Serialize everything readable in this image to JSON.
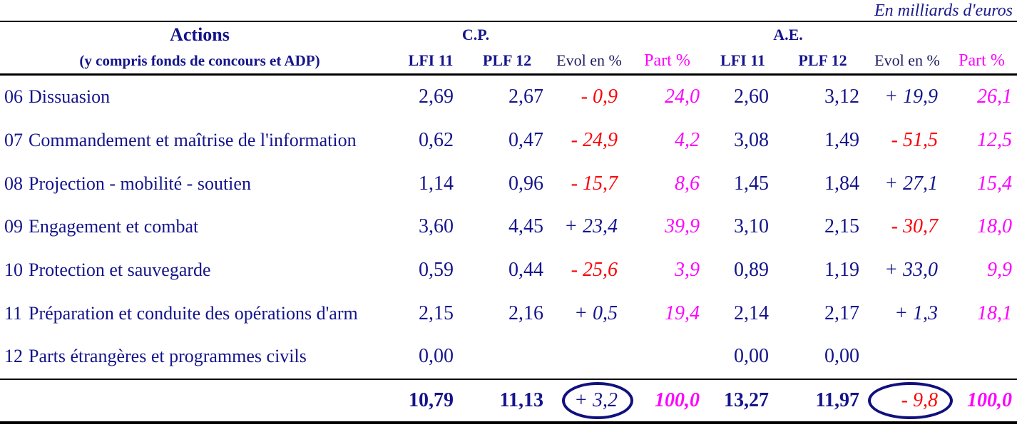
{
  "caption": "En milliards d'euros",
  "header": {
    "actions_title": "Actions",
    "actions_subtitle": "(y compris fonds de concours et ADP)",
    "group_cp": "C.P.",
    "group_ae": "A.E.",
    "col_lfi": "LFI 11",
    "col_plf": "PLF 12",
    "col_evol": "Evol en %",
    "col_part": "Part %"
  },
  "colors": {
    "navy_text": "#14148c",
    "negative_red": "#fb0205",
    "part_magenta": "#ff00ff",
    "rule_black": "#000000",
    "circle_navy": "#10107e"
  },
  "rows": [
    {
      "num": "06",
      "label": "Dissuasion",
      "cp_lfi": "2,69",
      "cp_plf": "2,67",
      "cp_evol": "- 0,9",
      "cp_part": "24,0",
      "ae_lfi": "2,60",
      "ae_plf": "3,12",
      "ae_evol": "+ 19,9",
      "ae_part": "26,1"
    },
    {
      "num": "07",
      "label": "Commandement et maîtrise de l'information",
      "cp_lfi": "0,62",
      "cp_plf": "0,47",
      "cp_evol": "- 24,9",
      "cp_part": "4,2",
      "ae_lfi": "3,08",
      "ae_plf": "1,49",
      "ae_evol": "- 51,5",
      "ae_part": "12,5"
    },
    {
      "num": "08",
      "label": "Projection - mobilité - soutien",
      "cp_lfi": "1,14",
      "cp_plf": "0,96",
      "cp_evol": "- 15,7",
      "cp_part": "8,6",
      "ae_lfi": "1,45",
      "ae_plf": "1,84",
      "ae_evol": "+ 27,1",
      "ae_part": "15,4"
    },
    {
      "num": "09",
      "label": "Engagement et combat",
      "cp_lfi": "3,60",
      "cp_plf": "4,45",
      "cp_evol": "+ 23,4",
      "cp_part": "39,9",
      "ae_lfi": "3,10",
      "ae_plf": "2,15",
      "ae_evol": "- 30,7",
      "ae_part": "18,0"
    },
    {
      "num": "10",
      "label": "Protection et sauvegarde",
      "cp_lfi": "0,59",
      "cp_plf": "0,44",
      "cp_evol": "- 25,6",
      "cp_part": "3,9",
      "ae_lfi": "0,89",
      "ae_plf": "1,19",
      "ae_evol": "+ 33,0",
      "ae_part": "9,9"
    },
    {
      "num": "11",
      "label": "Préparation et conduite des opérations d'arm",
      "cp_lfi": "2,15",
      "cp_plf": "2,16",
      "cp_evol": "+ 0,5",
      "cp_part": "19,4",
      "ae_lfi": "2,14",
      "ae_plf": "2,17",
      "ae_evol": "+ 1,3",
      "ae_part": "18,1"
    },
    {
      "num": "12",
      "label": "Parts étrangères et programmes civils",
      "cp_lfi": "0,00",
      "cp_plf": "",
      "cp_evol": "",
      "cp_part": "",
      "ae_lfi": "0,00",
      "ae_plf": "0,00",
      "ae_evol": "",
      "ae_part": ""
    }
  ],
  "total": {
    "cp_lfi": "10,79",
    "cp_plf": "11,13",
    "cp_evol": "+ 3,2",
    "cp_part": "100,0",
    "ae_lfi": "13,27",
    "ae_plf": "11,97",
    "ae_evol": "- 9,8",
    "ae_part": "100,0"
  }
}
